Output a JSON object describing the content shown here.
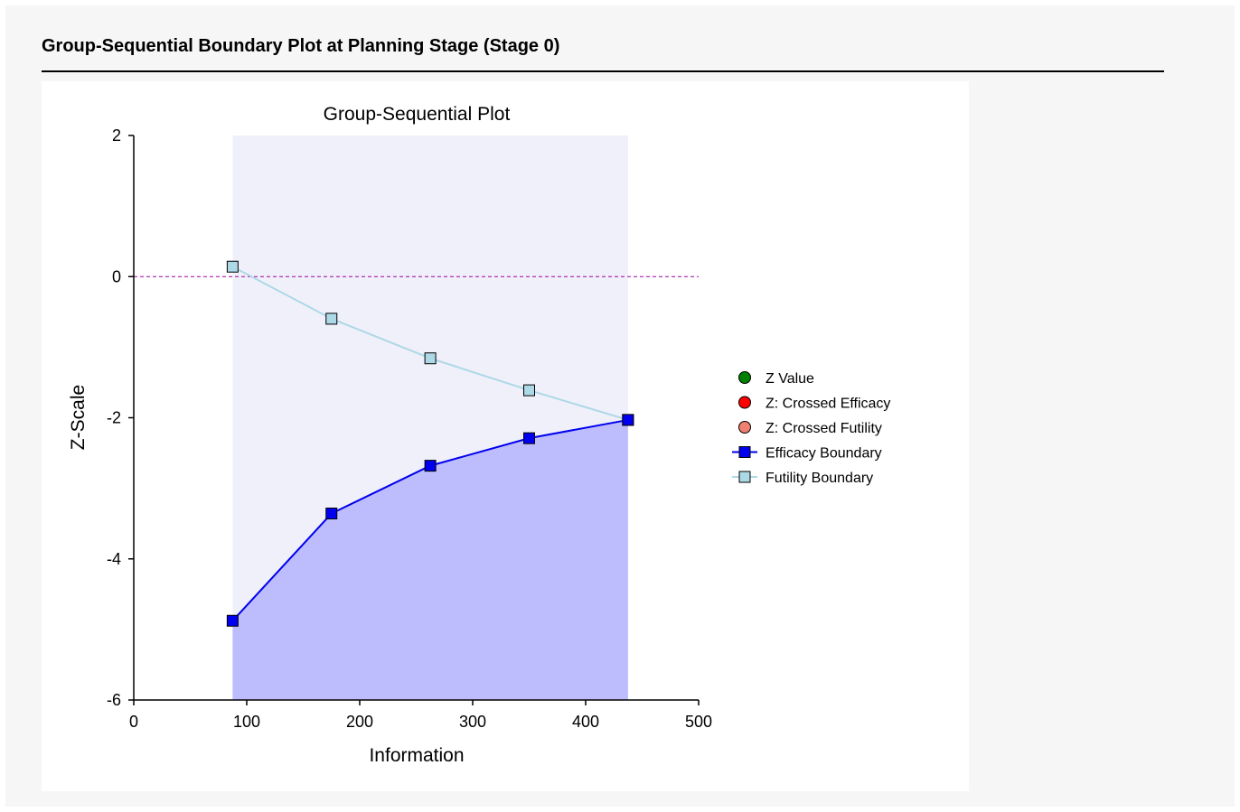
{
  "report": {
    "heading": "Group-Sequential Boundary Plot at Planning Stage (Stage 0)"
  },
  "chart_data": {
    "type": "line",
    "title": "Group-Sequential Plot",
    "xlabel": "Information",
    "ylabel": "Z-Scale",
    "xlim": [
      0,
      500
    ],
    "ylim": [
      -6,
      2
    ],
    "xticks": [
      0,
      100,
      200,
      300,
      400,
      500
    ],
    "yticks": [
      2,
      0,
      -2,
      -4,
      -6
    ],
    "reference_line_y": 0,
    "continue_region": {
      "x_start": 87.5,
      "x_end": 437.5
    },
    "series": [
      {
        "name": "Efficacy Boundary",
        "color": "#0000ee",
        "marker": "square",
        "x": [
          87.5,
          175,
          262.5,
          350,
          437.5
        ],
        "y": [
          -4.877,
          -3.357,
          -2.68,
          -2.29,
          -2.031
        ]
      },
      {
        "name": "Futility Boundary",
        "color": "#add8e6",
        "marker": "square",
        "x": [
          87.5,
          175,
          262.5,
          350,
          437.5
        ],
        "y": [
          0.141,
          -0.597,
          -1.158,
          -1.611,
          -2.031
        ]
      }
    ],
    "legend": {
      "placement": "right",
      "items": [
        {
          "label": "Z Value",
          "symbol": "circle",
          "color": "#008000"
        },
        {
          "label": "Z: Crossed Efficacy",
          "symbol": "circle",
          "color": "#ff0000"
        },
        {
          "label": "Z: Crossed Futility",
          "symbol": "circle",
          "color": "#f08070"
        },
        {
          "label": "Efficacy Boundary",
          "symbol": "line-square",
          "color": "#0000ee"
        },
        {
          "label": "Futility Boundary",
          "symbol": "line-square",
          "color": "#add8e6"
        }
      ]
    },
    "colors": {
      "efficacy_region": "#bdbdfd",
      "continue_region": "#f0f0fa",
      "reference_line": "#a000a0"
    }
  }
}
